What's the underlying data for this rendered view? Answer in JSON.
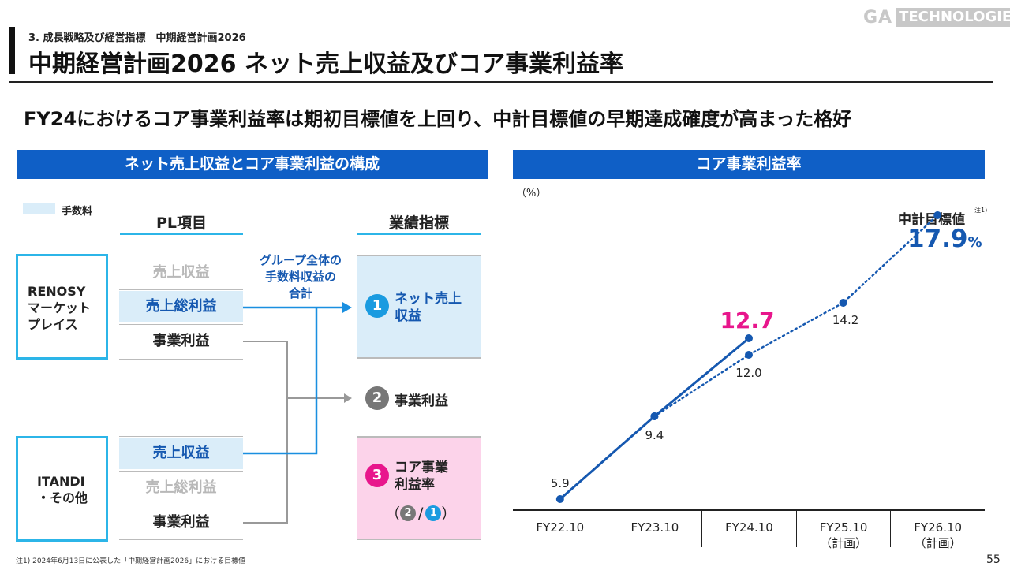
{
  "brand": {
    "ga": "GA",
    "tech": "TECHNOLOGIES"
  },
  "breadcrumb": "3. 成長戦略及び経営指標　中期経営計画2026",
  "page_title": "中期経営計画2026 ネット売上収益及びコア事業利益率",
  "headline": "FY24におけるコア事業利益率は期初目標値を上回り、中計目標値の早期達成確度が高まった格好",
  "left_panel": {
    "header": "ネット売上収益とコア事業利益の構成",
    "legend_label": "手数料",
    "pl_heading": "PL項目",
    "kpi_heading": "業績指標",
    "segments": {
      "renosy": [
        "RENOSY",
        "マーケット",
        "プレイス"
      ],
      "itandi": [
        "ITANDI",
        "・その他"
      ]
    },
    "renosy_items": [
      "売上収益",
      "売上総利益",
      "事業利益"
    ],
    "itandi_items": [
      "売上収益",
      "売上総利益",
      "事業利益"
    ],
    "flow_label": [
      "グループ全体の",
      "手数料収益の",
      "合計"
    ],
    "kpis": [
      {
        "num": "1",
        "label": [
          "ネット売上",
          "収益"
        ],
        "color": "#1a9be0"
      },
      {
        "num": "2",
        "label": [
          "事業利益"
        ],
        "color": "#777777"
      },
      {
        "num": "3",
        "label": [
          "コア事業",
          "利益率"
        ],
        "color": "#e8168c"
      }
    ],
    "formula": {
      "open": "（",
      "num": "2",
      "slash": "/",
      "den": "1",
      "close": "）"
    }
  },
  "right_panel": {
    "header": "コア事業利益率"
  },
  "chart_data": {
    "type": "line",
    "ylabel": "（%）",
    "categories": [
      "FY22.10",
      "FY23.10",
      "FY24.10",
      "FY25.10",
      "FY26.10"
    ],
    "category_sublabels": [
      "",
      "",
      "",
      "（計画）",
      "（計画）"
    ],
    "series": [
      {
        "style": "solid",
        "color": "#1558b0",
        "values": [
          5.9,
          9.4,
          12.7,
          null,
          null
        ]
      },
      {
        "style": "dotted",
        "color": "#1558b0",
        "values": [
          null,
          9.4,
          12.0,
          14.2,
          17.9
        ]
      }
    ],
    "labels": {
      "actual": [
        "5.9",
        "9.4",
        "12.7"
      ],
      "plan": [
        "12.0",
        "14.2"
      ]
    },
    "highlight_actual": {
      "text": "12.7",
      "color": "#e8168c"
    },
    "target": {
      "title": "中計目標値",
      "note": "注1)",
      "value": "17.9",
      "unit": "%",
      "color": "#1558b0"
    },
    "ylim": [
      0,
      20
    ],
    "grid": false
  },
  "footnote": "注1) 2024年6月13日に公表した「中期経営計画2026」における目標値",
  "page_number": "55"
}
